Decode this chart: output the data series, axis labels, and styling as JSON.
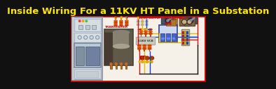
{
  "title": "Inside Wiring For a 11KV HT Panel in a Substation",
  "title_color": "#FFE600",
  "title_bg": "#111111",
  "bg_color": "#111111",
  "content_bg": "#f5f0e8",
  "border_color": "#cc0000",
  "title_fontsize": 9.5,
  "wire_red": "#dd1111",
  "wire_blue": "#1144cc",
  "wire_yellow": "#ddbb00",
  "wire_black": "#111111",
  "label_red": "#cc0000",
  "label_cyan": "#00aacc",
  "component_orange": "#cc4400",
  "component_lt_orange": "#dd8844",
  "panel_light": "#e8ecf0",
  "panel_border": "#aabbcc",
  "acb_blue": "#4466bb",
  "acb_face": "#aabbee",
  "pt_box": "#cc8833"
}
